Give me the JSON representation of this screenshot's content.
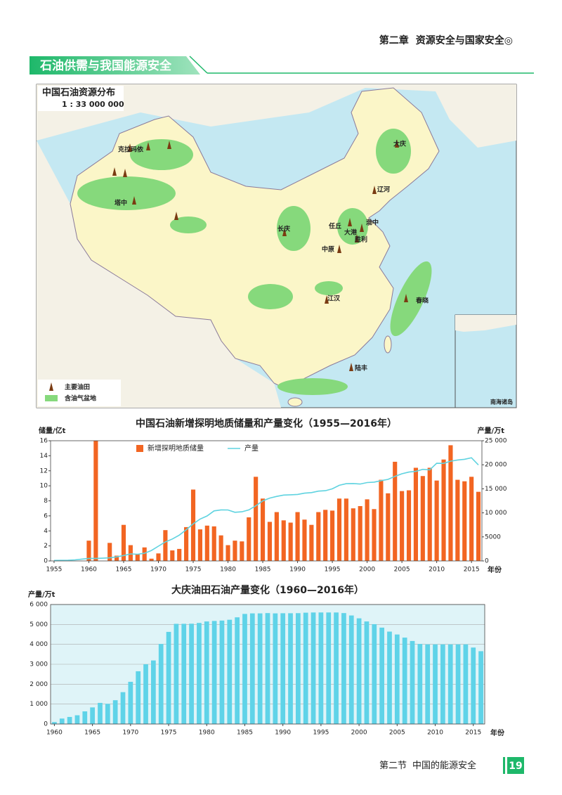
{
  "header": {
    "chapter": "第二章",
    "chapter_title": "资源安全与国家安全◎"
  },
  "section_banner": "石油供需与我国能源安全",
  "map": {
    "title": "中国石油资源分布",
    "scale": "1 : 33 000 000",
    "labels": [
      "克拉玛依",
      "塔中",
      "大庆",
      "辽河",
      "任丘",
      "渤中",
      "大港",
      "胜利",
      "中原",
      "长庆",
      "江汉",
      "春晓",
      "陆丰"
    ],
    "legend": [
      "主要油田",
      "含油气盆地"
    ],
    "inset_label": "南海诸岛"
  },
  "chart_data": [
    {
      "type": "combo",
      "title": "中国石油新增探明地质储量和产量变化（1955—2016年）",
      "ylabel": "储量/亿t",
      "y2label": "产量/万t",
      "xlabel": "年份",
      "x": [
        1955,
        1956,
        1957,
        1958,
        1959,
        1960,
        1961,
        1962,
        1963,
        1964,
        1965,
        1966,
        1967,
        1968,
        1969,
        1970,
        1971,
        1972,
        1973,
        1974,
        1975,
        1976,
        1977,
        1978,
        1979,
        1980,
        1981,
        1982,
        1983,
        1984,
        1985,
        1986,
        1987,
        1988,
        1989,
        1990,
        1991,
        1992,
        1993,
        1994,
        1995,
        1996,
        1997,
        1998,
        1999,
        2000,
        2001,
        2002,
        2003,
        2004,
        2005,
        2006,
        2007,
        2008,
        2009,
        2010,
        2011,
        2012,
        2013,
        2014,
        2015,
        2016
      ],
      "series": [
        {
          "name": "新增探明地质储量",
          "type": "bar",
          "color": "#f26522",
          "values": [
            0,
            0,
            0,
            0,
            0,
            2.7,
            16,
            0,
            2.4,
            0.7,
            4.8,
            2.1,
            0.9,
            1.8,
            0.3,
            1.0,
            4.1,
            1.4,
            1.6,
            4.5,
            9.5,
            4.2,
            4.7,
            4.6,
            3.4,
            2.1,
            2.7,
            2.6,
            5.8,
            11.2,
            8.3,
            5.2,
            6.5,
            5.4,
            5.1,
            6.5,
            5.5,
            4.8,
            6.5,
            6.8,
            6.7,
            8.3,
            8.3,
            7.0,
            7.3,
            8.2,
            6.9,
            10.8,
            9.0,
            13.2,
            9.3,
            9.4,
            12.4,
            11.3,
            12.4,
            10.7,
            13.5,
            15.4,
            10.8,
            10.6,
            11.2,
            9.2
          ]
        },
        {
          "name": "产量",
          "type": "line",
          "axis": "y2",
          "color": "#5fd3e0",
          "values": [
            97,
            116,
            146,
            226,
            373,
            520,
            531,
            575,
            648,
            848,
            1131,
            1455,
            1388,
            1599,
            2174,
            3065,
            3941,
            4567,
            5361,
            6485,
            7706,
            8716,
            9364,
            10405,
            10615,
            10595,
            10122,
            10212,
            10607,
            11461,
            12490,
            13069,
            13414,
            13705,
            13764,
            13831,
            14099,
            14210,
            14524,
            14608,
            15005,
            15733,
            16074,
            16100,
            16000,
            16300,
            16396,
            16700,
            16960,
            17587,
            18135,
            18477,
            18632,
            19044,
            18949,
            20301,
            20288,
            20748,
            20992,
            21143,
            21456,
            19969
          ]
        }
      ],
      "xlim": [
        1954.5,
        2016.5
      ],
      "xticks": [
        1955,
        1960,
        1965,
        1970,
        1975,
        1980,
        1985,
        1990,
        1995,
        2000,
        2005,
        2010,
        2015
      ],
      "ylim": [
        0,
        16
      ],
      "yticks": [
        0,
        2,
        4,
        6,
        8,
        10,
        12,
        14,
        16
      ],
      "y2lim": [
        0,
        25000
      ],
      "y2ticks": [
        0,
        5000,
        {
          "value": 10000,
          "label": "10 000"
        },
        {
          "value": 15000,
          "label": "15 000"
        },
        {
          "value": 20000,
          "label": "20 000"
        },
        {
          "value": 25000,
          "label": "25 000"
        }
      ],
      "legend": "top-left",
      "grid": false
    },
    {
      "type": "bar",
      "title": "大庆油田石油产量变化（1960—2016年）",
      "ylabel": "产量/万t",
      "xlabel": "年份",
      "color": "#5fd3e8",
      "plot_background": "#dff4f8",
      "x": [
        1960,
        1961,
        1962,
        1963,
        1964,
        1965,
        1966,
        1967,
        1968,
        1969,
        1970,
        1971,
        1972,
        1973,
        1974,
        1975,
        1976,
        1977,
        1978,
        1979,
        1980,
        1981,
        1982,
        1983,
        1984,
        1985,
        1986,
        1987,
        1988,
        1989,
        1990,
        1991,
        1992,
        1993,
        1994,
        1995,
        1996,
        1997,
        1998,
        1999,
        2000,
        2001,
        2002,
        2003,
        2004,
        2005,
        2006,
        2007,
        2008,
        2009,
        2010,
        2011,
        2012,
        2013,
        2014,
        2015,
        2016
      ],
      "values": [
        97,
        274,
        355,
        439,
        635,
        834,
        1060,
        1015,
        1194,
        1600,
        2119,
        2649,
        3000,
        3191,
        4020,
        4626,
        5030,
        5031,
        5037,
        5075,
        5150,
        5175,
        5194,
        5235,
        5357,
        5528,
        5555,
        5555,
        5570,
        5555,
        5562,
        5562,
        5566,
        5590,
        5600,
        5601,
        5601,
        5600,
        5570,
        5450,
        5307,
        5150,
        5013,
        4840,
        4640,
        4495,
        4338,
        4169,
        4020,
        4000,
        4000,
        4000,
        4000,
        4000,
        4000,
        3839,
        3656
      ],
      "xlim": [
        1959.5,
        2016.5
      ],
      "xticks": [
        1960,
        1965,
        1970,
        1975,
        1980,
        1985,
        1990,
        1995,
        2000,
        2005,
        2010,
        2015
      ],
      "ylim": [
        0,
        6000
      ],
      "yticks": [
        0,
        {
          "value": 1000,
          "label": "1 000"
        },
        {
          "value": 2000,
          "label": "2 000"
        },
        {
          "value": 3000,
          "label": "3 000"
        },
        {
          "value": 4000,
          "label": "4 000"
        },
        {
          "value": 5000,
          "label": "5 000"
        },
        {
          "value": 6000,
          "label": "6 000"
        }
      ],
      "grid": true
    }
  ],
  "footer": {
    "section": "第二节",
    "section_title": "中国的能源安全",
    "page_number": 19
  }
}
